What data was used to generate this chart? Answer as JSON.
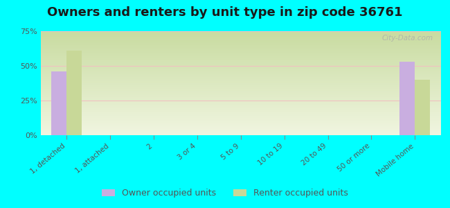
{
  "title": "Owners and renters by unit type in zip code 36761",
  "categories": [
    "1, detached",
    "1, attached",
    "2",
    "3 or 4",
    "5 to 9",
    "10 to 19",
    "20 to 49",
    "50 or more",
    "Mobile home"
  ],
  "owner_values": [
    46,
    0,
    0,
    0,
    0,
    0,
    0,
    0,
    53
  ],
  "renter_values": [
    61,
    0,
    0,
    0,
    0,
    0,
    0,
    0,
    40
  ],
  "owner_color": "#c9aee0",
  "renter_color": "#c8d898",
  "background_color": "#00ffff",
  "gradient_top": "#c8dba0",
  "gradient_bottom": "#f0f5e0",
  "ylim": [
    0,
    75
  ],
  "yticks": [
    0,
    25,
    50,
    75
  ],
  "ytick_labels": [
    "0%",
    "25%",
    "50%",
    "75%"
  ],
  "bar_width": 0.35,
  "legend_owner": "Owner occupied units",
  "legend_renter": "Renter occupied units",
  "watermark": "City-Data.com",
  "title_fontsize": 13,
  "axis_label_fontsize": 7.5,
  "tick_fontsize": 8,
  "legend_fontsize": 9,
  "grid_color": "#f0c0c0",
  "tick_color": "#555555"
}
